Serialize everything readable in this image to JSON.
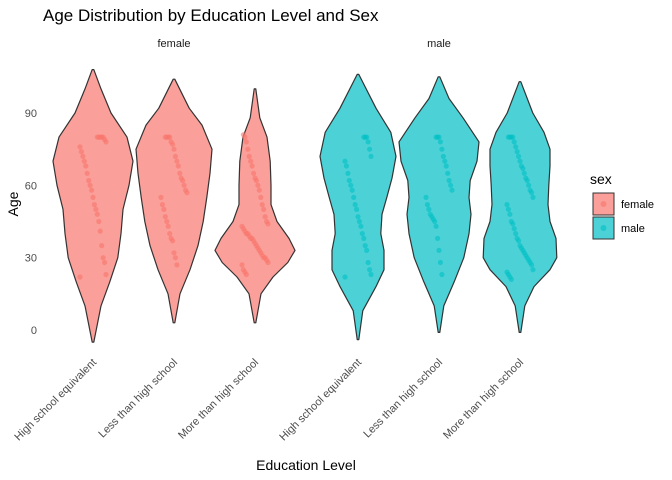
{
  "chart_data": {
    "type": "violin",
    "title": "Age Distribution by Education Level and Sex",
    "xlabel": "Education Level",
    "ylabel": "Age",
    "ylim": [
      -5,
      112
    ],
    "yticks": [
      0,
      30,
      60,
      90
    ],
    "grid": false,
    "legend": {
      "title": "sex",
      "position": "right",
      "entries": [
        "female",
        "male"
      ]
    },
    "facets": [
      "female",
      "male"
    ],
    "categories": [
      "High school equivalent",
      "Less than high school",
      "More than high school"
    ],
    "colors": {
      "female": "#F8766D",
      "male": "#00BFC4"
    },
    "series": [
      {
        "facet": "female",
        "category": "High school equivalent",
        "min": -5,
        "max": 108,
        "density": [
          [
            -5,
            0.02
          ],
          [
            10,
            0.2
          ],
          [
            20,
            0.42
          ],
          [
            30,
            0.62
          ],
          [
            40,
            0.7
          ],
          [
            50,
            0.75
          ],
          [
            60,
            0.9
          ],
          [
            70,
            1.0
          ],
          [
            80,
            0.85
          ],
          [
            90,
            0.45
          ],
          [
            100,
            0.2
          ],
          [
            108,
            0.02
          ]
        ],
        "points": [
          22,
          23,
          28,
          30,
          35,
          41,
          45,
          48,
          50,
          52,
          55,
          58,
          60,
          62,
          65,
          68,
          70,
          72,
          74,
          76,
          78,
          79,
          80,
          80,
          80,
          80,
          80
        ]
      },
      {
        "facet": "female",
        "category": "Less than high school",
        "min": 3,
        "max": 104,
        "density": [
          [
            3,
            0.02
          ],
          [
            15,
            0.15
          ],
          [
            25,
            0.4
          ],
          [
            35,
            0.6
          ],
          [
            45,
            0.73
          ],
          [
            55,
            0.82
          ],
          [
            65,
            0.9
          ],
          [
            75,
            0.95
          ],
          [
            85,
            0.7
          ],
          [
            92,
            0.38
          ],
          [
            104,
            0.02
          ]
        ],
        "points": [
          27,
          30,
          32,
          37,
          38,
          40,
          43,
          45,
          47,
          50,
          52,
          55,
          57,
          58,
          60,
          62,
          63,
          65,
          68,
          70,
          72,
          75,
          77,
          78,
          80,
          80,
          80,
          80
        ]
      },
      {
        "facet": "female",
        "category": "More than high school",
        "min": 3,
        "max": 100,
        "density": [
          [
            3,
            0.02
          ],
          [
            15,
            0.15
          ],
          [
            22,
            0.45
          ],
          [
            28,
            0.82
          ],
          [
            33,
            1.0
          ],
          [
            38,
            0.85
          ],
          [
            45,
            0.55
          ],
          [
            52,
            0.4
          ],
          [
            60,
            0.4
          ],
          [
            70,
            0.38
          ],
          [
            80,
            0.3
          ],
          [
            88,
            0.12
          ],
          [
            100,
            0.02
          ]
        ],
        "points": [
          23,
          24,
          25,
          27,
          28,
          29,
          30,
          30,
          31,
          32,
          33,
          34,
          35,
          36,
          37,
          38,
          38,
          39,
          40,
          40,
          41,
          42,
          43,
          44,
          45,
          47,
          50,
          52,
          55,
          58,
          60,
          62,
          63,
          65,
          68,
          70,
          72,
          75,
          78,
          80,
          81
        ]
      },
      {
        "facet": "male",
        "category": "High school equivalent",
        "min": -4,
        "max": 106,
        "density": [
          [
            -4,
            0.02
          ],
          [
            8,
            0.12
          ],
          [
            18,
            0.45
          ],
          [
            25,
            0.65
          ],
          [
            33,
            0.65
          ],
          [
            40,
            0.57
          ],
          [
            48,
            0.6
          ],
          [
            55,
            0.72
          ],
          [
            63,
            0.85
          ],
          [
            72,
            0.95
          ],
          [
            82,
            0.82
          ],
          [
            92,
            0.45
          ],
          [
            106,
            0.02
          ]
        ],
        "points": [
          22,
          23,
          25,
          28,
          33,
          35,
          38,
          40,
          43,
          45,
          47,
          50,
          52,
          55,
          58,
          60,
          62,
          65,
          68,
          70,
          72,
          75,
          78,
          80,
          80,
          80
        ]
      },
      {
        "facet": "male",
        "category": "Less than high school",
        "min": -1,
        "max": 105,
        "density": [
          [
            -1,
            0.02
          ],
          [
            10,
            0.12
          ],
          [
            20,
            0.38
          ],
          [
            30,
            0.62
          ],
          [
            40,
            0.75
          ],
          [
            48,
            0.8
          ],
          [
            55,
            0.75
          ],
          [
            62,
            0.78
          ],
          [
            70,
            0.95
          ],
          [
            78,
            1.0
          ],
          [
            88,
            0.6
          ],
          [
            96,
            0.25
          ],
          [
            105,
            0.02
          ]
        ],
        "points": [
          23,
          28,
          33,
          38,
          43,
          45,
          46,
          47,
          48,
          50,
          52,
          55,
          58,
          60,
          62,
          65,
          68,
          70,
          72,
          75,
          78,
          80,
          80,
          80
        ]
      },
      {
        "facet": "male",
        "category": "More than high school",
        "min": -1,
        "max": 103,
        "density": [
          [
            -1,
            0.02
          ],
          [
            10,
            0.12
          ],
          [
            18,
            0.35
          ],
          [
            25,
            0.75
          ],
          [
            30,
            0.92
          ],
          [
            38,
            0.9
          ],
          [
            45,
            0.75
          ],
          [
            52,
            0.7
          ],
          [
            60,
            0.72
          ],
          [
            68,
            0.75
          ],
          [
            75,
            0.75
          ],
          [
            82,
            0.6
          ],
          [
            90,
            0.32
          ],
          [
            103,
            0.02
          ]
        ],
        "points": [
          21,
          22,
          23,
          24,
          25,
          27,
          28,
          29,
          30,
          31,
          32,
          33,
          34,
          35,
          37,
          38,
          40,
          42,
          44,
          45,
          48,
          50,
          52,
          55,
          57,
          58,
          60,
          62,
          63,
          65,
          67,
          68,
          70,
          72,
          74,
          76,
          78,
          80,
          80,
          80,
          80
        ]
      }
    ]
  }
}
